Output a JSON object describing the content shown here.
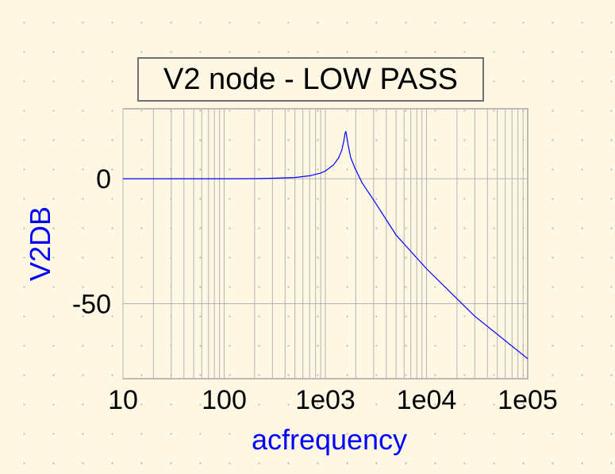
{
  "chart_data": {
    "type": "line",
    "title": "V2 node - LOW PASS",
    "xlabel": "acfrequency",
    "ylabel": "V2DB",
    "xscale": "log",
    "xlim": [
      10,
      100000
    ],
    "ylim": [
      -80,
      28
    ],
    "xticks": [
      10,
      100,
      1000,
      10000,
      100000
    ],
    "xtick_labels": [
      "10",
      "100",
      "1e03",
      "1e04",
      "1e05"
    ],
    "yticks": [
      0,
      -50
    ],
    "ytick_labels": [
      "0",
      "-50"
    ],
    "grid": true,
    "series": [
      {
        "color": "#0000ff",
        "x": [
          10,
          30,
          100,
          200,
          300,
          500,
          700,
          900,
          1000,
          1200,
          1350,
          1450,
          1520,
          1560,
          1592,
          1620,
          1680,
          1780,
          1950,
          2300,
          3000,
          5000,
          10000,
          30000,
          100000
        ],
        "y": [
          0,
          0,
          0,
          0.05,
          0.2,
          0.5,
          1.2,
          2.3,
          3.1,
          5.5,
          8.3,
          11.3,
          15.0,
          17.8,
          19.0,
          17.5,
          13.5,
          8.5,
          4.5,
          -1.5,
          -8.5,
          -22.5,
          -36.0,
          -55.0,
          -72.0
        ]
      }
    ]
  }
}
